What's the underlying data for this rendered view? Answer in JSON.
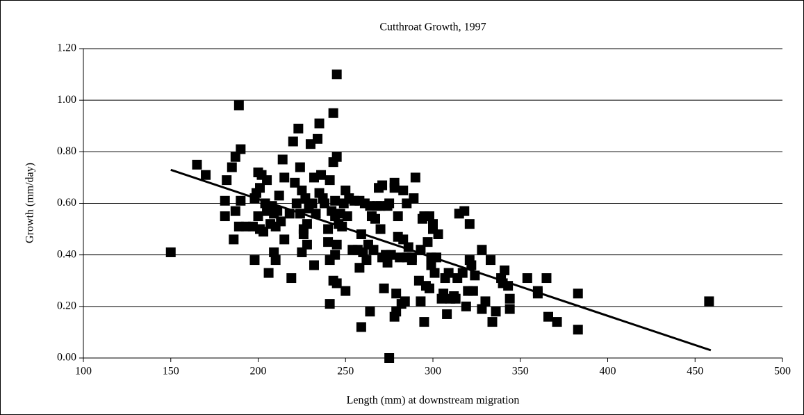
{
  "chart_data": {
    "type": "scatter",
    "title": "Cutthroat Growth, 1997",
    "xlabel": "Length (mm) at downstream migration",
    "ylabel": "Growth (mm/day)",
    "xlim": [
      100,
      500
    ],
    "xticks": [
      100,
      150,
      200,
      250,
      300,
      350,
      400,
      450,
      500
    ],
    "ylim": [
      0,
      1.2
    ],
    "yticks": [
      {
        "value": 0,
        "label": "0.00"
      },
      {
        "value": 0.2,
        "label": "0.20"
      },
      {
        "value": 0.4,
        "label": "0.40"
      },
      {
        "value": 0.6,
        "label": "0.60"
      },
      {
        "value": 0.8,
        "label": "0.80"
      },
      {
        "value": 1.0,
        "label": "1.00"
      },
      {
        "value": 1.2,
        "label": "1.20"
      }
    ],
    "grid": true,
    "series": [
      {
        "color": "#000000",
        "x": [
          150,
          165,
          170,
          181,
          181,
          182,
          185,
          186,
          187,
          187,
          189,
          189,
          190,
          190,
          193,
          197,
          198,
          198,
          199,
          200,
          200,
          201,
          201,
          202,
          203,
          204,
          205,
          205,
          206,
          207,
          208,
          209,
          209,
          210,
          210,
          211,
          212,
          213,
          214,
          215,
          215,
          218,
          219,
          220,
          221,
          222,
          223,
          224,
          224,
          225,
          225,
          226,
          226,
          227,
          228,
          228,
          229,
          230,
          231,
          232,
          232,
          233,
          234,
          235,
          235,
          236,
          237,
          238,
          240,
          240,
          241,
          241,
          241,
          242,
          243,
          243,
          243,
          244,
          244,
          244,
          245,
          245,
          245,
          245,
          246,
          247,
          248,
          249,
          250,
          250,
          251,
          252,
          254,
          255,
          257,
          258,
          258,
          259,
          259,
          260,
          261,
          262,
          263,
          264,
          264,
          265,
          266,
          267,
          268,
          269,
          270,
          270,
          271,
          271,
          272,
          273,
          274,
          274,
          275,
          275,
          276,
          278,
          278,
          278,
          279,
          279,
          280,
          280,
          281,
          282,
          283,
          283,
          284,
          285,
          285,
          286,
          288,
          288,
          289,
          290,
          292,
          293,
          293,
          294,
          295,
          295,
          296,
          297,
          298,
          298,
          299,
          299,
          300,
          300,
          301,
          302,
          303,
          305,
          306,
          307,
          308,
          309,
          310,
          312,
          313,
          314,
          315,
          317,
          318,
          319,
          320,
          321,
          321,
          322,
          323,
          324,
          328,
          328,
          330,
          333,
          334,
          336,
          339,
          340,
          341,
          343,
          344,
          344,
          354,
          360,
          360,
          365,
          366,
          371,
          383,
          383,
          458
        ],
        "values": [
          0.41,
          0.75,
          0.71,
          0.61,
          0.55,
          0.69,
          0.74,
          0.46,
          0.78,
          0.57,
          0.51,
          0.98,
          0.81,
          0.61,
          0.51,
          0.51,
          0.62,
          0.38,
          0.64,
          0.72,
          0.55,
          0.5,
          0.66,
          0.71,
          0.49,
          0.6,
          0.69,
          0.57,
          0.33,
          0.52,
          0.59,
          0.41,
          0.56,
          0.38,
          0.51,
          0.57,
          0.63,
          0.53,
          0.77,
          0.46,
          0.7,
          0.56,
          0.31,
          0.84,
          0.68,
          0.6,
          0.89,
          0.74,
          0.56,
          0.65,
          0.41,
          0.5,
          0.48,
          0.62,
          0.52,
          0.44,
          0.58,
          0.83,
          0.6,
          0.36,
          0.7,
          0.56,
          0.85,
          0.91,
          0.64,
          0.71,
          0.62,
          0.6,
          0.5,
          0.45,
          0.38,
          0.69,
          0.21,
          0.57,
          0.3,
          0.95,
          0.76,
          0.4,
          0.61,
          0.55,
          1.1,
          0.78,
          0.44,
          0.29,
          0.52,
          0.56,
          0.51,
          0.6,
          0.26,
          0.65,
          0.55,
          0.62,
          0.42,
          0.61,
          0.42,
          0.61,
          0.35,
          0.48,
          0.12,
          0.41,
          0.6,
          0.38,
          0.44,
          0.18,
          0.59,
          0.55,
          0.42,
          0.54,
          0.59,
          0.66,
          0.59,
          0.5,
          0.67,
          0.39,
          0.27,
          0.4,
          0.59,
          0.37,
          0.0,
          0.6,
          0.4,
          0.16,
          0.68,
          0.66,
          0.18,
          0.25,
          0.47,
          0.55,
          0.39,
          0.21,
          0.65,
          0.46,
          0.22,
          0.39,
          0.6,
          0.43,
          0.39,
          0.38,
          0.62,
          0.7,
          0.3,
          0.22,
          0.42,
          0.54,
          0.55,
          0.14,
          0.28,
          0.45,
          0.27,
          0.55,
          0.39,
          0.36,
          0.5,
          0.52,
          0.33,
          0.39,
          0.48,
          0.23,
          0.25,
          0.31,
          0.17,
          0.33,
          0.23,
          0.24,
          0.23,
          0.31,
          0.56,
          0.33,
          0.57,
          0.2,
          0.26,
          0.38,
          0.52,
          0.36,
          0.26,
          0.32,
          0.42,
          0.19,
          0.22,
          0.38,
          0.14,
          0.18,
          0.31,
          0.29,
          0.34,
          0.28,
          0.23,
          0.19,
          0.31,
          0.26,
          0.25,
          0.31,
          0.16,
          0.14,
          0.25,
          0.11,
          0.22
        ]
      }
    ],
    "trendline": {
      "color": "#000000",
      "x": [
        150,
        459
      ],
      "values": [
        0.73,
        0.03
      ]
    }
  }
}
